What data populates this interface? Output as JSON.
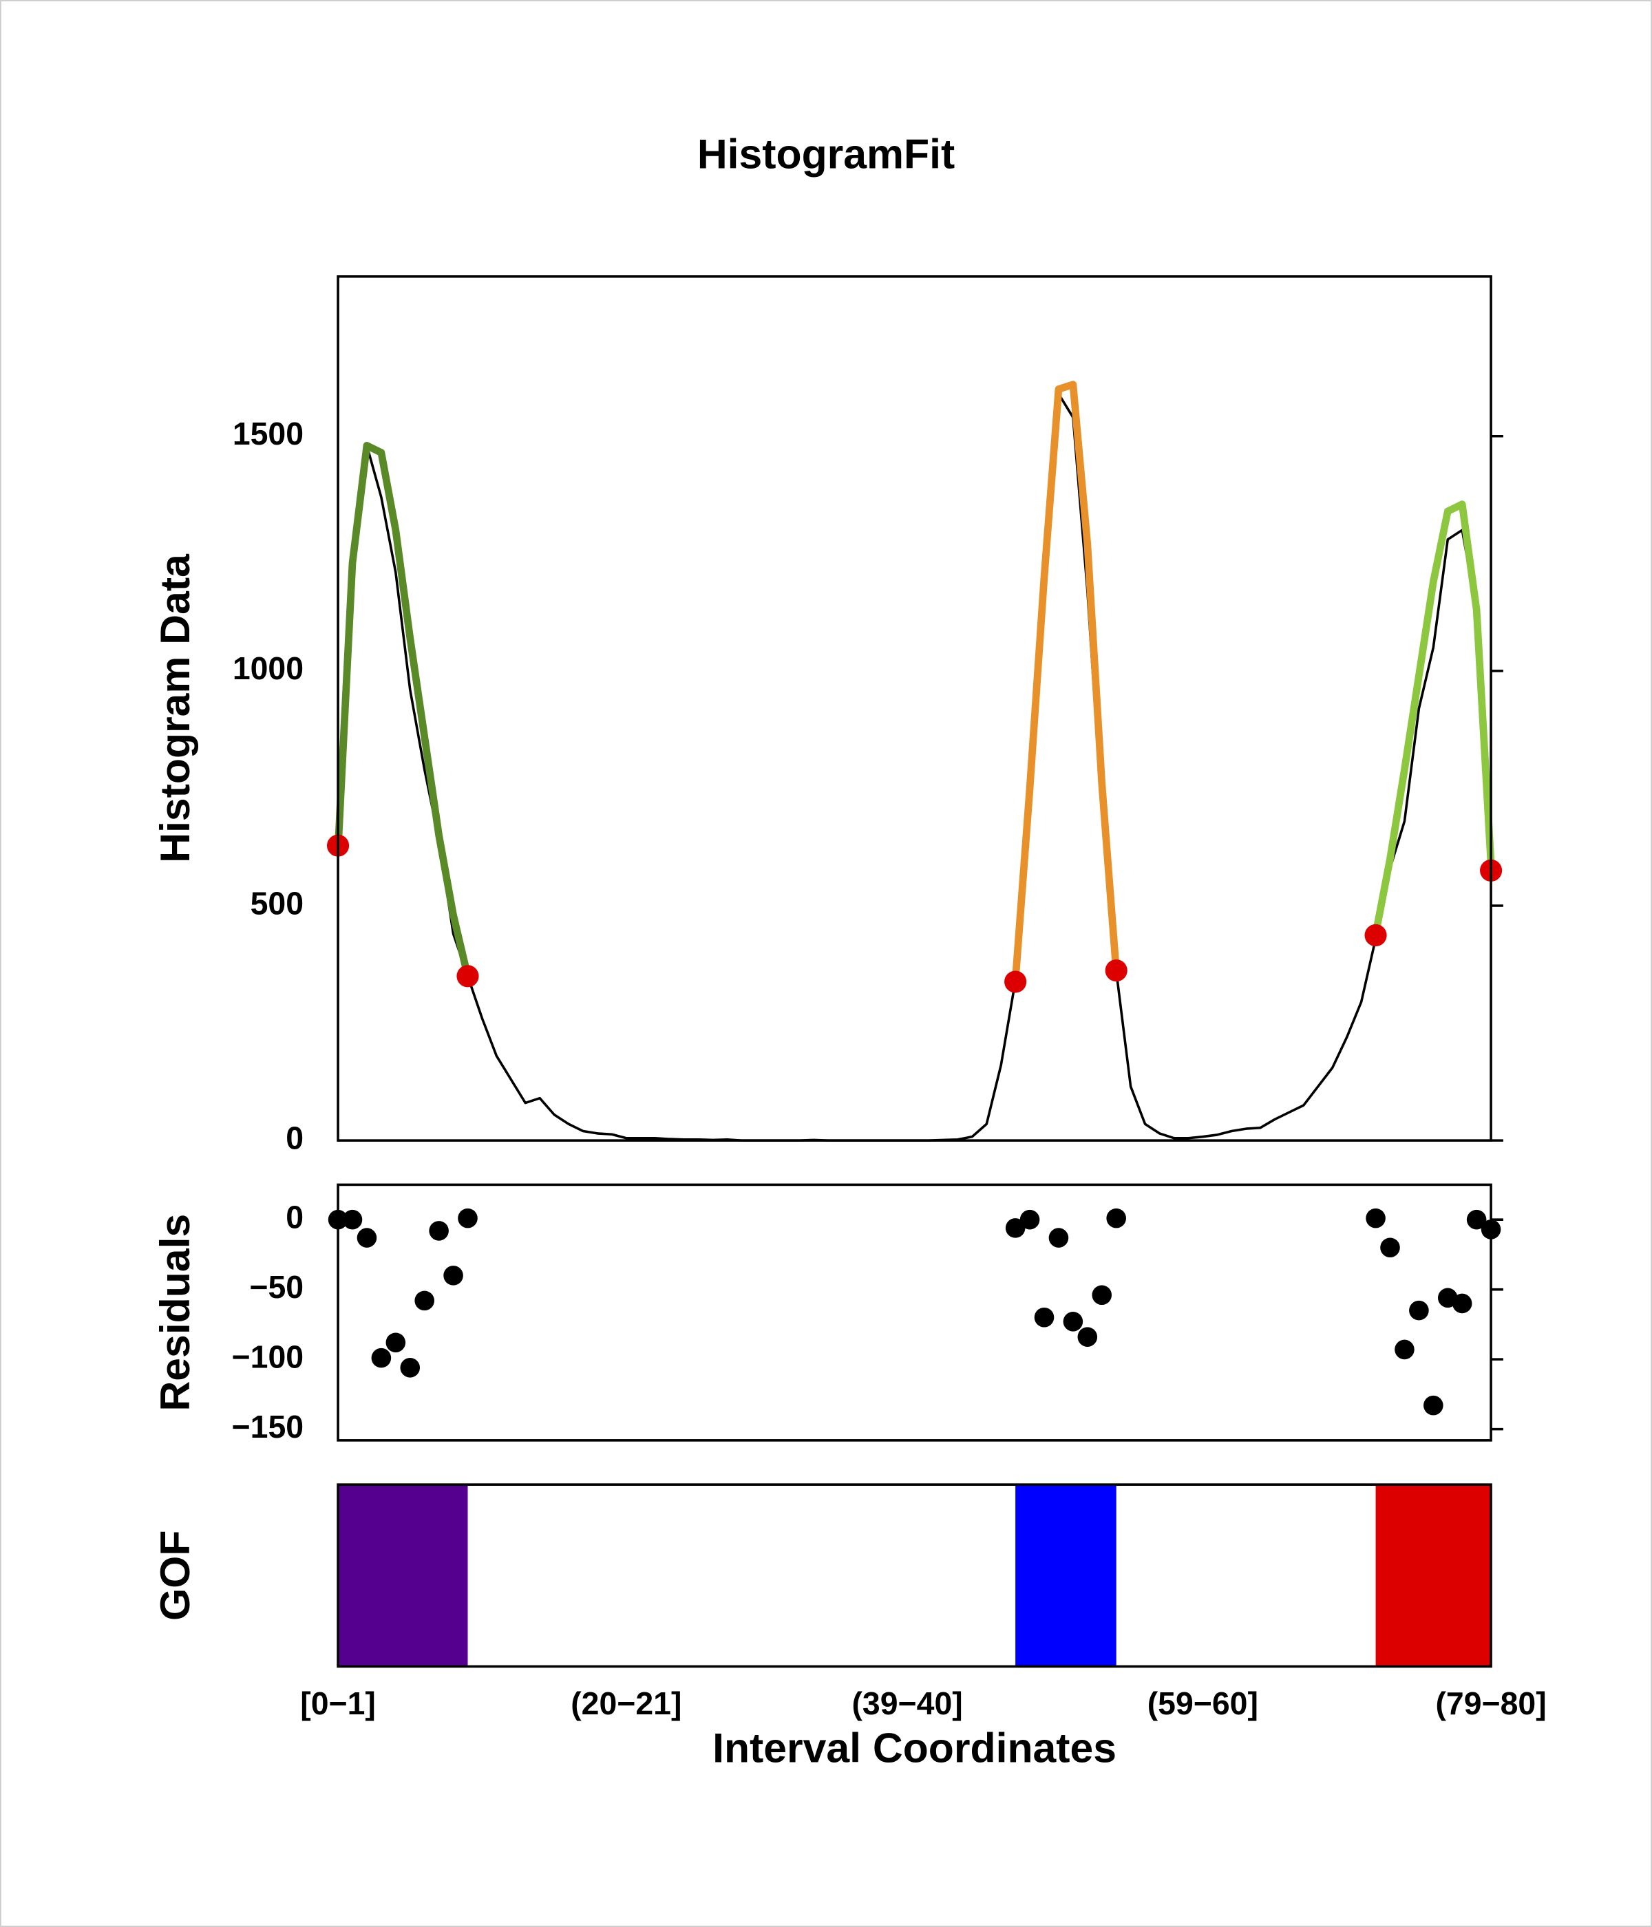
{
  "chart_data": [
    {
      "type": "line",
      "title": "HistogramFit",
      "ylabel": "Histogram Data",
      "xlim": [
        0,
        80
      ],
      "ylim": [
        0,
        1840
      ],
      "yticks": [
        0,
        500,
        1000,
        1500
      ],
      "series": [
        {
          "style": "line",
          "color": "#000000",
          "width": 2,
          "x": [
            0,
            1,
            2,
            3,
            4,
            5,
            6,
            7,
            8,
            9,
            10,
            11,
            12,
            13,
            14,
            15,
            16,
            17,
            18,
            19,
            20,
            21,
            22,
            23,
            24,
            25,
            26,
            27,
            28,
            29,
            30,
            31,
            32,
            33,
            34,
            35,
            36,
            37,
            38,
            39,
            40,
            41,
            42,
            43,
            44,
            45,
            46,
            47,
            48,
            49,
            50,
            51,
            52,
            53,
            54,
            55,
            56,
            57,
            58,
            59,
            60,
            61,
            62,
            63,
            64,
            65,
            66,
            67,
            68,
            69,
            70,
            71,
            72,
            73,
            74,
            75,
            76,
            77,
            78,
            79,
            80
          ],
          "values": [
            630,
            1230,
            1480,
            1370,
            1210,
            960,
            790,
            640,
            440,
            350,
            260,
            180,
            130,
            80,
            90,
            55,
            35,
            20,
            15,
            13,
            5,
            5,
            5,
            3,
            2,
            2,
            1,
            2,
            0,
            0,
            0,
            0,
            0,
            1,
            0,
            0,
            0,
            0,
            0,
            0,
            0,
            0,
            1,
            2,
            8,
            35,
            160,
            340,
            750,
            1200,
            1590,
            1540,
            1170,
            700,
            360,
            115,
            35,
            15,
            5,
            5,
            8,
            12,
            20,
            25,
            27,
            45,
            60,
            75,
            115,
            155,
            220,
            295,
            430,
            580,
            680,
            920,
            1050,
            1280,
            1300,
            1130,
            580
          ]
        },
        {
          "style": "line",
          "color": "#5a8a28",
          "width": 6,
          "x": [
            0,
            1,
            2,
            3,
            4,
            5,
            6,
            7,
            8,
            9
          ],
          "values": [
            620,
            1230,
            1480,
            1465,
            1300,
            1070,
            860,
            650,
            480,
            350
          ]
        },
        {
          "style": "line",
          "color": "#e8902a",
          "width": 6,
          "x": [
            47,
            48,
            49,
            50,
            51,
            52,
            53,
            54
          ],
          "values": [
            340,
            750,
            1200,
            1600,
            1610,
            1270,
            760,
            360
          ]
        },
        {
          "style": "line",
          "color": "#8dc63f",
          "width": 6,
          "x": [
            72,
            73,
            74,
            75,
            76,
            77,
            78,
            79,
            80
          ],
          "values": [
            440,
            600,
            790,
            990,
            1190,
            1340,
            1355,
            1130,
            590
          ]
        },
        {
          "style": "points",
          "color": "#dd0000",
          "x": [
            0,
            9,
            47,
            54,
            72,
            80
          ],
          "values": [
            628,
            350,
            338,
            362,
            437,
            575
          ]
        }
      ]
    },
    {
      "type": "scatter",
      "ylabel": "Residuals",
      "color": "#000000",
      "xlim": [
        0,
        80
      ],
      "ylim": [
        -158,
        25
      ],
      "yticks": [
        0,
        {
          "value": -50,
          "label": "−50"
        },
        {
          "value": -100,
          "label": "−100"
        },
        {
          "value": -150,
          "label": "−150"
        }
      ],
      "x": [
        0,
        1,
        2,
        3,
        4,
        5,
        6,
        7,
        8,
        9,
        47,
        48,
        49,
        50,
        51,
        52,
        53,
        54,
        72,
        73,
        74,
        75,
        76,
        77,
        78,
        79,
        80
      ],
      "values": [
        0,
        0,
        -13,
        -99,
        -88,
        -106,
        -58,
        -8,
        -40,
        1,
        -6,
        0,
        -70,
        -13,
        -73,
        -84,
        -54,
        1,
        1,
        -20,
        -93,
        -65,
        -133,
        -56,
        -60,
        0,
        -7
      ]
    },
    {
      "type": "bands",
      "ylabel": "GOF",
      "xlabel": "Interval Coordinates",
      "xlim": [
        0,
        80
      ],
      "xticks": [
        {
          "value": 0,
          "label": "[0−1]"
        },
        {
          "value": 20,
          "label": "(20−21]"
        },
        {
          "value": 39.5,
          "label": "(39−40]"
        },
        {
          "value": 60,
          "label": "(59−60]"
        },
        {
          "value": 80,
          "label": "(79−80]"
        }
      ],
      "bands": [
        {
          "x": [
            0,
            9
          ],
          "color": "#560090"
        },
        {
          "x": [
            47,
            54
          ],
          "color": "#0000ff"
        },
        {
          "x": [
            72,
            80
          ],
          "color": "#dd0000"
        }
      ]
    }
  ]
}
